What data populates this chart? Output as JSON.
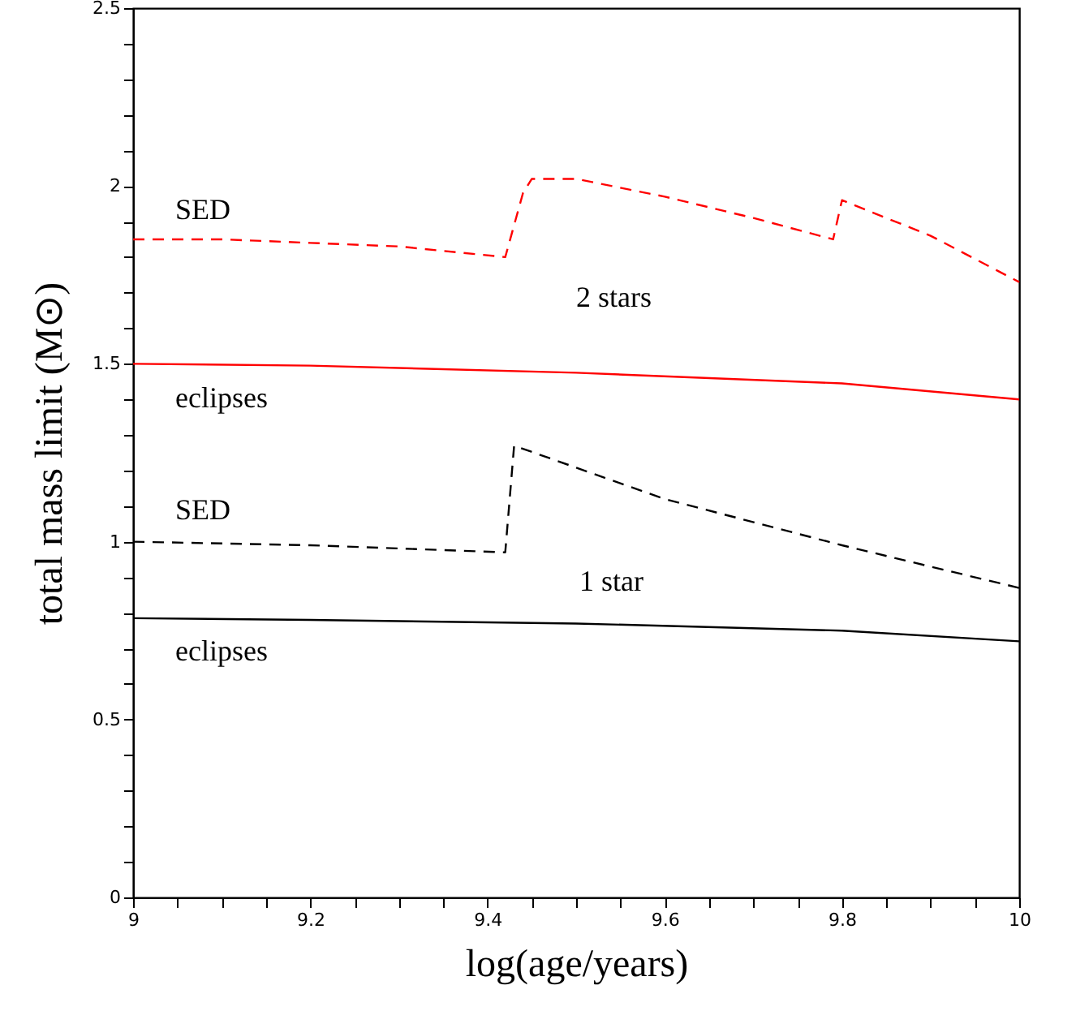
{
  "chart_data": {
    "type": "line",
    "xlabel": "log(age/years)",
    "ylabel": "total mass limit (M⊙)",
    "xlim": [
      9,
      10
    ],
    "ylim": [
      0,
      2.5
    ],
    "xticks": [
      9,
      {
        "value": 9.05,
        "label": null
      },
      {
        "value": 9.1,
        "label": null
      },
      {
        "value": 9.15,
        "label": null
      },
      9.2,
      {
        "value": 9.25,
        "label": null
      },
      {
        "value": 9.3,
        "label": null
      },
      {
        "value": 9.35,
        "label": null
      },
      9.4,
      {
        "value": 9.45,
        "label": null
      },
      {
        "value": 9.5,
        "label": null
      },
      {
        "value": 9.55,
        "label": null
      },
      9.6,
      {
        "value": 9.65,
        "label": null
      },
      {
        "value": 9.7,
        "label": null
      },
      {
        "value": 9.75,
        "label": null
      },
      9.8,
      {
        "value": 9.85,
        "label": null
      },
      {
        "value": 9.9,
        "label": null
      },
      {
        "value": 9.95,
        "label": null
      },
      10
    ],
    "yticks": [
      0,
      {
        "value": 0.1,
        "label": null
      },
      {
        "value": 0.2,
        "label": null
      },
      {
        "value": 0.3,
        "label": null
      },
      {
        "value": 0.4,
        "label": null
      },
      0.5,
      {
        "value": 0.6,
        "label": null
      },
      {
        "value": 0.7,
        "label": null
      },
      {
        "value": 0.8,
        "label": null
      },
      {
        "value": 0.9,
        "label": null
      },
      1,
      {
        "value": 1.1,
        "label": null
      },
      {
        "value": 1.2,
        "label": null
      },
      {
        "value": 1.3,
        "label": null
      },
      {
        "value": 1.4,
        "label": null
      },
      1.5,
      {
        "value": 1.6,
        "label": null
      },
      {
        "value": 1.7,
        "label": null
      },
      {
        "value": 1.8,
        "label": null
      },
      {
        "value": 1.9,
        "label": null
      },
      2,
      {
        "value": 2.1,
        "label": null
      },
      {
        "value": 2.2,
        "label": null
      },
      {
        "value": 2.3,
        "label": null
      },
      {
        "value": 2.4,
        "label": null
      },
      2.5
    ],
    "grid": false,
    "marker": "none",
    "series": [
      {
        "color": "#ff0000",
        "line_style": "dashed",
        "x": [
          9,
          9.1,
          9.2,
          9.3,
          9.42,
          9.44,
          9.45,
          9.5,
          9.6,
          9.7,
          9.79,
          9.8,
          9.9,
          10
        ],
        "values": [
          1.85,
          1.85,
          1.84,
          1.83,
          1.8,
          1.98,
          2.02,
          2.02,
          1.97,
          1.91,
          1.85,
          1.96,
          1.86,
          1.73
        ]
      },
      {
        "color": "#ff0000",
        "line_style": "solid",
        "x": [
          9,
          9.2,
          9.5,
          9.8,
          10
        ],
        "values": [
          1.5,
          1.495,
          1.475,
          1.445,
          1.4
        ]
      },
      {
        "color": "#000000",
        "line_style": "dashed",
        "x": [
          9,
          9.2,
          9.42,
          9.43,
          9.6,
          9.8,
          10
        ],
        "values": [
          1.0,
          0.99,
          0.97,
          1.27,
          1.12,
          0.99,
          0.87
        ]
      },
      {
        "color": "#000000",
        "line_style": "solid",
        "x": [
          9,
          9.2,
          9.5,
          9.8,
          10
        ],
        "values": [
          0.785,
          0.78,
          0.77,
          0.75,
          0.72
        ]
      }
    ],
    "annotations": [
      "SED",
      "2 stars",
      "eclipses",
      "SED",
      "1 star",
      "eclipses"
    ]
  }
}
